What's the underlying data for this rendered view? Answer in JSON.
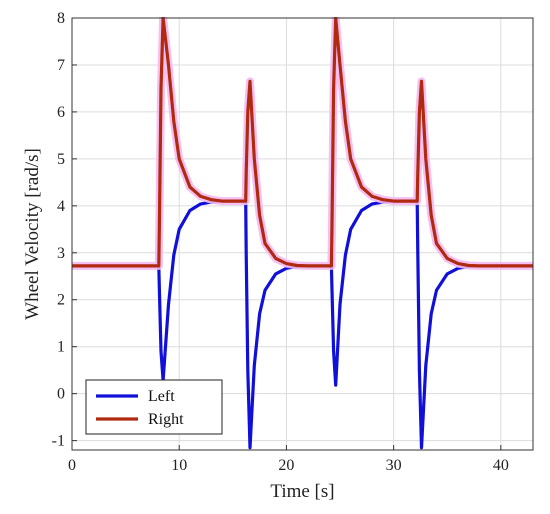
{
  "chart_data": {
    "type": "line",
    "title": "",
    "xlabel": "Time [s]",
    "ylabel": "Wheel Velocity [rad/s]",
    "xlim": [
      0,
      43
    ],
    "ylim": [
      -1.2,
      8
    ],
    "xticks": [
      "0",
      "10",
      "20",
      "30",
      "40"
    ],
    "yticks": [
      "-1",
      "0",
      "1",
      "2",
      "3",
      "4",
      "5",
      "6",
      "7",
      "8"
    ],
    "grid": true,
    "legend": "bottom-left",
    "colors": {
      "Left": "#1010d8",
      "Right": "#b02a10",
      "halo": "#f4b8f0"
    },
    "series": [
      {
        "name": "Left",
        "x": [
          0,
          8.1,
          8.15,
          8.3,
          8.5,
          9,
          9.5,
          10,
          11,
          12,
          13,
          14,
          16.2,
          16.25,
          16.4,
          16.6,
          17,
          17.5,
          18,
          19,
          20,
          21,
          22,
          24.2,
          24.25,
          24.4,
          24.6,
          25,
          25.5,
          26,
          27,
          28,
          29,
          30,
          32.2,
          32.25,
          32.4,
          32.6,
          33,
          33.5,
          34,
          35,
          36,
          37,
          38,
          43
        ],
        "y": [
          2.72,
          2.72,
          2.2,
          0.9,
          0.28,
          1.9,
          2.95,
          3.5,
          3.9,
          4.04,
          4.08,
          4.1,
          4.1,
          3.0,
          0.5,
          -1.15,
          0.6,
          1.7,
          2.2,
          2.55,
          2.67,
          2.71,
          2.72,
          2.72,
          2.2,
          0.9,
          0.18,
          1.9,
          2.95,
          3.5,
          3.9,
          4.04,
          4.08,
          4.1,
          4.1,
          3.0,
          0.5,
          -1.15,
          0.6,
          1.7,
          2.2,
          2.55,
          2.67,
          2.71,
          2.72,
          2.72
        ]
      },
      {
        "name": "Right",
        "x": [
          0,
          8.1,
          8.15,
          8.3,
          8.5,
          9,
          9.5,
          10,
          11,
          12,
          13,
          14,
          16.2,
          16.25,
          16.4,
          16.6,
          17,
          17.5,
          18,
          19,
          20,
          21,
          22,
          24.2,
          24.25,
          24.4,
          24.6,
          25,
          25.5,
          26,
          27,
          28,
          29,
          30,
          32.2,
          32.25,
          32.4,
          32.6,
          33,
          33.5,
          34,
          35,
          36,
          37,
          38,
          43
        ],
        "y": [
          2.72,
          2.72,
          3.6,
          6.5,
          8.0,
          7.0,
          5.8,
          5.0,
          4.4,
          4.2,
          4.13,
          4.1,
          4.1,
          4.7,
          6.0,
          6.65,
          5.0,
          3.8,
          3.2,
          2.88,
          2.77,
          2.73,
          2.72,
          2.72,
          3.6,
          6.5,
          8.0,
          7.0,
          5.8,
          5.0,
          4.4,
          4.2,
          4.13,
          4.1,
          4.1,
          4.7,
          6.0,
          6.65,
          5.0,
          3.8,
          3.2,
          2.88,
          2.77,
          2.73,
          2.72,
          2.72
        ]
      }
    ]
  }
}
